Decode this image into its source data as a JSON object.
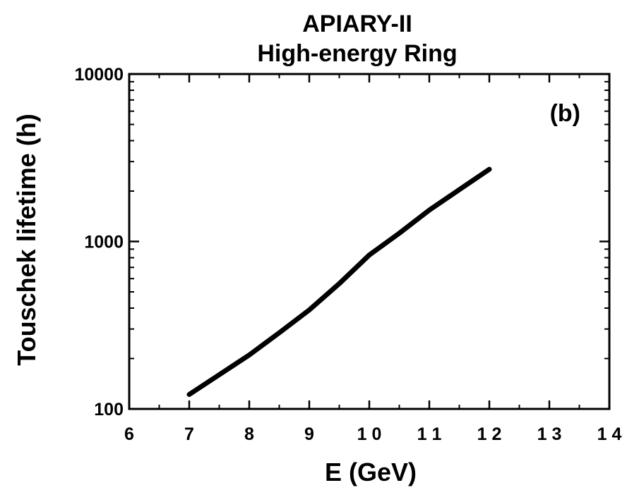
{
  "chart_data": {
    "type": "line",
    "title": "APIARY-II",
    "subtitle": "High-energy Ring",
    "xlabel": "E (GeV)",
    "ylabel": "Touschek lifetime (h)",
    "annotation": "(b)",
    "xlim": [
      6,
      14
    ],
    "ylim": [
      100,
      10000
    ],
    "y_scale": "log",
    "grid": false,
    "x_ticks": [
      6,
      7,
      8,
      9,
      10,
      11,
      12,
      13,
      14
    ],
    "y_ticks": [
      100,
      1000,
      10000
    ],
    "x_tick_labels": [
      "6",
      "7",
      "8",
      "9",
      "1 0",
      "1 1",
      "1 2",
      "1 3",
      "1 4"
    ],
    "y_tick_labels": [
      "100",
      "1000",
      "10000"
    ],
    "series": [
      {
        "x": [
          7,
          7.5,
          8,
          8.5,
          9,
          9.5,
          10,
          10.5,
          11,
          11.5,
          12
        ],
        "values": [
          122,
          160,
          210,
          285,
          390,
          560,
          830,
          1120,
          1540,
          2040,
          2700
        ]
      }
    ]
  }
}
